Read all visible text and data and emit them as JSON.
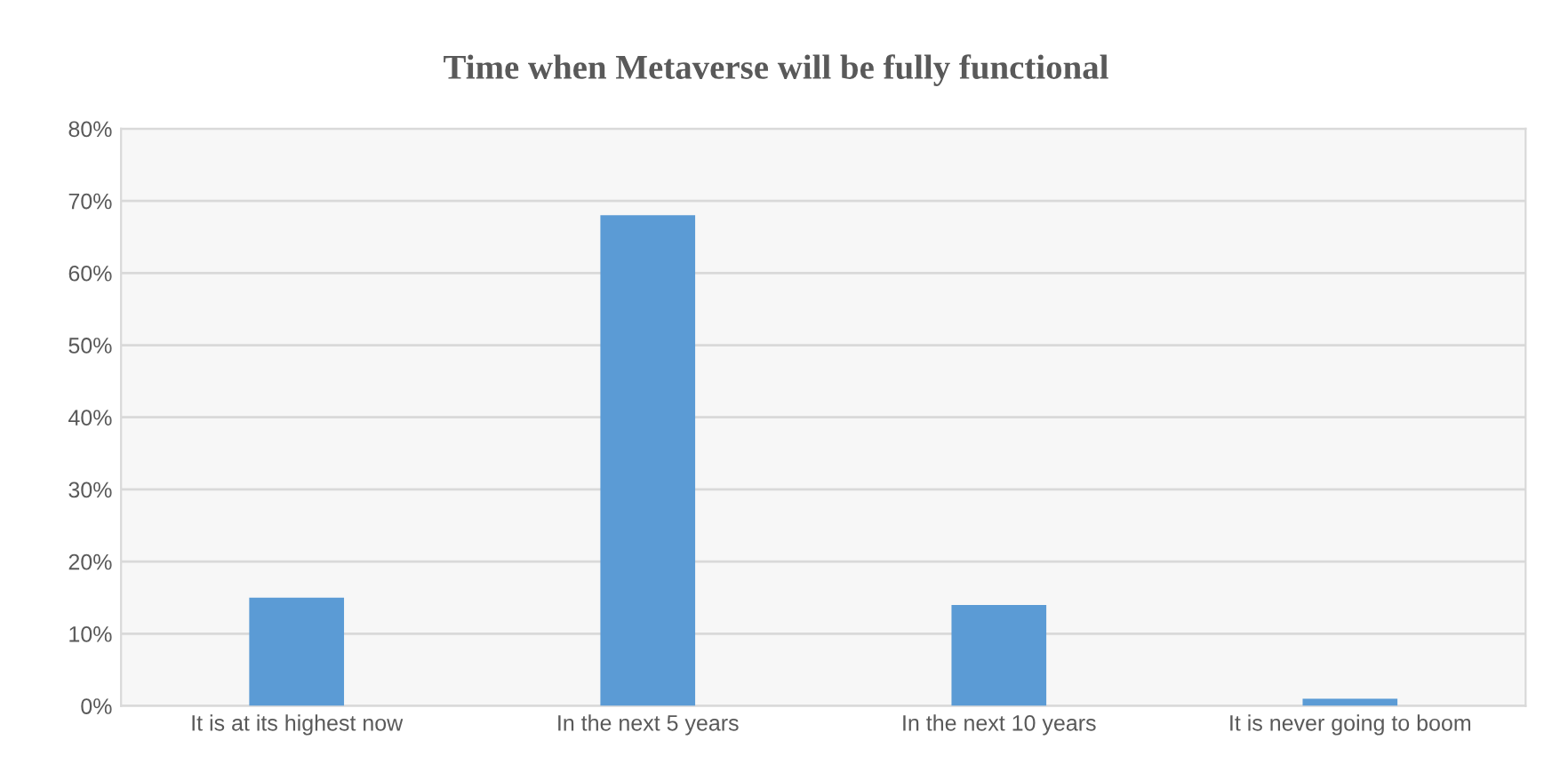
{
  "chart_data": {
    "type": "bar",
    "title": "Time when Metaverse will be fully functional",
    "categories": [
      "It is at its highest now",
      "In the next 5 years",
      "In the next 10 years",
      "It is never going to boom"
    ],
    "values": [
      15,
      68,
      14,
      1
    ],
    "color": "#5b9bd5",
    "ylim": [
      0,
      80
    ],
    "yticks": [
      {
        "value": 0,
        "label": "0%"
      },
      {
        "value": 10,
        "label": "10%"
      },
      {
        "value": 20,
        "label": "20%"
      },
      {
        "value": 30,
        "label": "30%"
      },
      {
        "value": 40,
        "label": "40%"
      },
      {
        "value": 50,
        "label": "50%"
      },
      {
        "value": 60,
        "label": "60%"
      },
      {
        "value": 70,
        "label": "70%"
      },
      {
        "value": 80,
        "label": "80%"
      }
    ],
    "grid": "y",
    "legend": false
  }
}
